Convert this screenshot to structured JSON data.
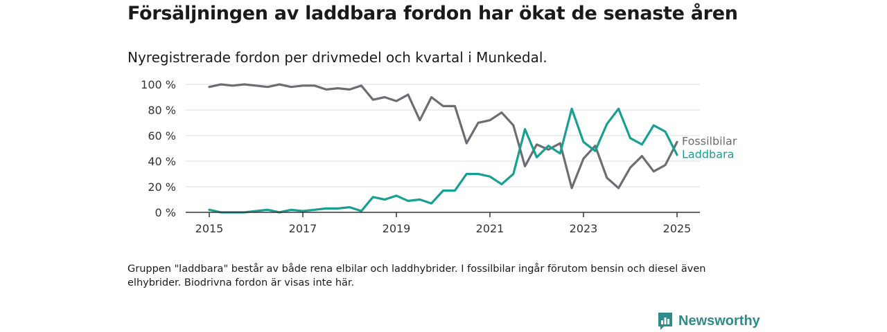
{
  "header": {
    "title": "Försäljningen av laddbara fordon har ökat de senaste åren",
    "subtitle": "Nyregistrerade fordon per drivmedel och kvartal i Munkedal."
  },
  "footer": {
    "note": "Gruppen \"laddbara\" består av både rena elbilar och laddhybrider. I fossilbilar ingår förutom bensin och diesel även elhybrider. Biodrivna fordon är visas inte här.",
    "brand": "Newsworthy"
  },
  "colors": {
    "fossil": "#6d6c72",
    "laddbara": "#17a091",
    "grid": "#dddddd",
    "axis": "#333333",
    "brand": "#2f8a8a"
  },
  "chart_data": {
    "type": "line",
    "x": [
      "2015-Q1",
      "2015-Q2",
      "2015-Q3",
      "2015-Q4",
      "2016-Q1",
      "2016-Q2",
      "2016-Q3",
      "2016-Q4",
      "2017-Q1",
      "2017-Q2",
      "2017-Q3",
      "2017-Q4",
      "2018-Q1",
      "2018-Q2",
      "2018-Q3",
      "2018-Q4",
      "2019-Q1",
      "2019-Q2",
      "2019-Q3",
      "2019-Q4",
      "2020-Q1",
      "2020-Q2",
      "2020-Q3",
      "2020-Q4",
      "2021-Q1",
      "2021-Q2",
      "2021-Q3",
      "2021-Q4",
      "2022-Q1",
      "2022-Q2",
      "2022-Q3",
      "2022-Q4",
      "2023-Q1",
      "2023-Q2",
      "2023-Q3",
      "2023-Q4",
      "2024-Q1",
      "2024-Q2",
      "2024-Q3",
      "2024-Q4",
      "2025-Q1"
    ],
    "series": [
      {
        "name": "Fossilbilar",
        "color_key": "fossil",
        "values": [
          98,
          100,
          99,
          100,
          99,
          98,
          100,
          98,
          99,
          99,
          96,
          97,
          96,
          99,
          88,
          90,
          87,
          92,
          72,
          90,
          83,
          83,
          54,
          70,
          72,
          78,
          68,
          36,
          53,
          49,
          54,
          19,
          42,
          52,
          27,
          19,
          35,
          44,
          32,
          37,
          55
        ]
      },
      {
        "name": "Laddbara",
        "color_key": "laddbara",
        "values": [
          2,
          0,
          0,
          0,
          1,
          2,
          0,
          2,
          1,
          2,
          3,
          3,
          4,
          1,
          12,
          10,
          13,
          9,
          10,
          7,
          17,
          17,
          30,
          30,
          28,
          22,
          30,
          65,
          43,
          52,
          46,
          81,
          55,
          48,
          69,
          81,
          58,
          53,
          68,
          63,
          45
        ]
      }
    ],
    "xticks": [
      {
        "label": "2015",
        "index": 0
      },
      {
        "label": "2017",
        "index": 8
      },
      {
        "label": "2019",
        "index": 16
      },
      {
        "label": "2021",
        "index": 24
      },
      {
        "label": "2023",
        "index": 32
      },
      {
        "label": "2025",
        "index": 40
      }
    ],
    "yticks": [
      "0 %",
      "20 %",
      "40 %",
      "60 %",
      "80 %",
      "100 %"
    ],
    "ylim": [
      0,
      100
    ],
    "grid": true,
    "legend": "right, labels at line ends"
  }
}
